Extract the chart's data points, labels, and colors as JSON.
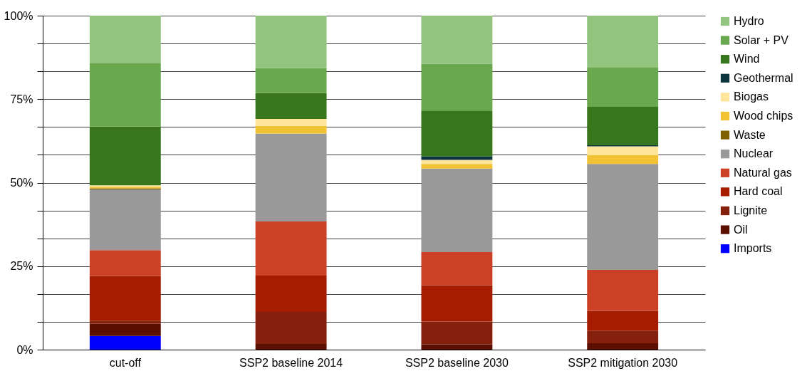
{
  "chart_data": {
    "type": "bar",
    "stacked": true,
    "grid": "y",
    "legend": "right",
    "categories": [
      "cut-off",
      "SSP2 baseline 2014",
      "SSP2 baseline 2030",
      "SSP2 mitigation 2030"
    ],
    "ylim": [
      0,
      100
    ],
    "yticks": [
      {
        "value": 0,
        "label": "0%"
      },
      {
        "value": 8.33,
        "label": null
      },
      {
        "value": 16.67,
        "label": null
      },
      {
        "value": 25,
        "label": "25%"
      },
      {
        "value": 33.33,
        "label": null
      },
      {
        "value": 41.67,
        "label": null
      },
      {
        "value": 50,
        "label": "50%"
      },
      {
        "value": 58.33,
        "label": null
      },
      {
        "value": 66.67,
        "label": null
      },
      {
        "value": 75,
        "label": "75%"
      },
      {
        "value": 83.33,
        "label": null
      },
      {
        "value": 91.67,
        "label": null
      },
      {
        "value": 100,
        "label": "100%"
      }
    ],
    "series": [
      {
        "name": "Imports",
        "color": "#0000ff",
        "values": [
          4.1,
          0,
          0,
          0
        ]
      },
      {
        "name": "Oil",
        "color": "#5b0f00",
        "values": [
          3.7,
          1.7,
          1.6,
          1.9
        ]
      },
      {
        "name": "Lignite",
        "color": "#85200c",
        "values": [
          0.9,
          9.6,
          6.8,
          3.8
        ]
      },
      {
        "name": "Hard coal",
        "color": "#a61c00",
        "values": [
          13.3,
          10.9,
          10.9,
          5.9
        ]
      },
      {
        "name": "Natural gas",
        "color": "#cc4125",
        "values": [
          7.8,
          16.2,
          9.9,
          12.3
        ]
      },
      {
        "name": "Nuclear",
        "color": "#999999",
        "values": [
          18.2,
          26.3,
          25.0,
          31.7
        ]
      },
      {
        "name": "Waste",
        "color": "#7f6000",
        "values": [
          0.3,
          0,
          0,
          0
        ]
      },
      {
        "name": "Wood chips",
        "color": "#f1c232",
        "values": [
          0.5,
          2.3,
          1.4,
          2.6
        ]
      },
      {
        "name": "Biogas",
        "color": "#ffe599",
        "values": [
          0.4,
          2.1,
          1.2,
          2.7
        ]
      },
      {
        "name": "Geothermal",
        "color": "#0c343d",
        "values": [
          0,
          0,
          1.1,
          0.3
        ]
      },
      {
        "name": "Wind",
        "color": "#38761d",
        "values": [
          17.6,
          7.7,
          13.7,
          11.5
        ]
      },
      {
        "name": "Solar + PV",
        "color": "#6aa84f",
        "values": [
          19.1,
          7.5,
          14.0,
          11.9
        ]
      },
      {
        "name": "Hydro",
        "color": "#93c47d",
        "values": [
          14.1,
          15.7,
          14.4,
          15.4
        ]
      }
    ]
  }
}
